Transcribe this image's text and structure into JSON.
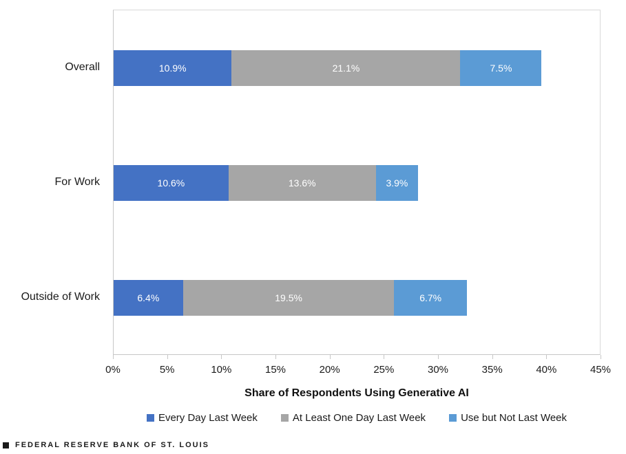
{
  "chart_data": {
    "type": "bar",
    "orientation": "horizontal",
    "stacked": true,
    "categories": [
      "Overall",
      "For Work",
      "Outside of Work"
    ],
    "series": [
      {
        "name": "Every Day Last Week",
        "color": "#4472C4",
        "values": [
          10.9,
          10.6,
          6.4
        ],
        "labels": [
          "10.9%",
          "10.6%",
          "6.4%"
        ]
      },
      {
        "name": "At Least One Day Last Week",
        "color": "#A6A6A6",
        "values": [
          21.1,
          13.6,
          19.5
        ],
        "labels": [
          "21.1%",
          "13.6%",
          "19.5%"
        ]
      },
      {
        "name": "Use but Not Last Week",
        "color": "#5B9BD5",
        "values": [
          7.5,
          3.9,
          6.7
        ],
        "labels": [
          "7.5%",
          "3.9%",
          "6.7%"
        ]
      }
    ],
    "totals": [
      39.5,
      28.1,
      32.6
    ],
    "xlabel": "Share of Respondents Using Generative AI",
    "xlim": [
      0,
      45
    ],
    "xtick_step": 5,
    "xticks": [
      "0%",
      "5%",
      "10%",
      "15%",
      "20%",
      "25%",
      "30%",
      "35%",
      "40%",
      "45%"
    ],
    "grid": false,
    "legend_position": "bottom",
    "value_label_color": "#FFFFFF"
  },
  "footer": {
    "brand": "FEDERAL RESERVE BANK OF ST. LOUIS"
  }
}
